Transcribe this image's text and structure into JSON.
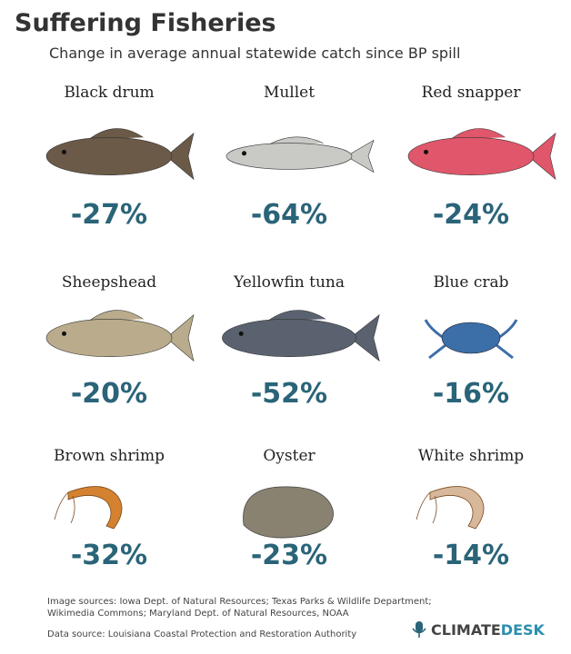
{
  "header": {
    "title": "Suffering Fisheries",
    "subtitle": "Change in average annual statewide catch since BP spill"
  },
  "items": [
    {
      "name": "Black drum",
      "change": "-27%"
    },
    {
      "name": "Mullet",
      "change": "-64%"
    },
    {
      "name": "Red snapper",
      "change": "-24%"
    },
    {
      "name": "Sheepshead",
      "change": "-20%"
    },
    {
      "name": "Yellowfin tuna",
      "change": "-52%"
    },
    {
      "name": "Blue crab",
      "change": "-16%"
    },
    {
      "name": "Brown shrimp",
      "change": "-32%"
    },
    {
      "name": "Oyster",
      "change": "-23%"
    },
    {
      "name": "White shrimp",
      "change": "-14%"
    }
  ],
  "footer": {
    "image_sources_1": "Image sources: Iowa Dept. of Natural Resources; Texas Parks & Wildlife Department;",
    "image_sources_2": "Wikimedia Commons; Maryland Dept. of Natural Resources, NOAA",
    "data_source": "Data source: Louisiana Coastal Protection and Restoration Authority",
    "logo_1": "CLIMATE",
    "logo_2": "DESK"
  }
}
